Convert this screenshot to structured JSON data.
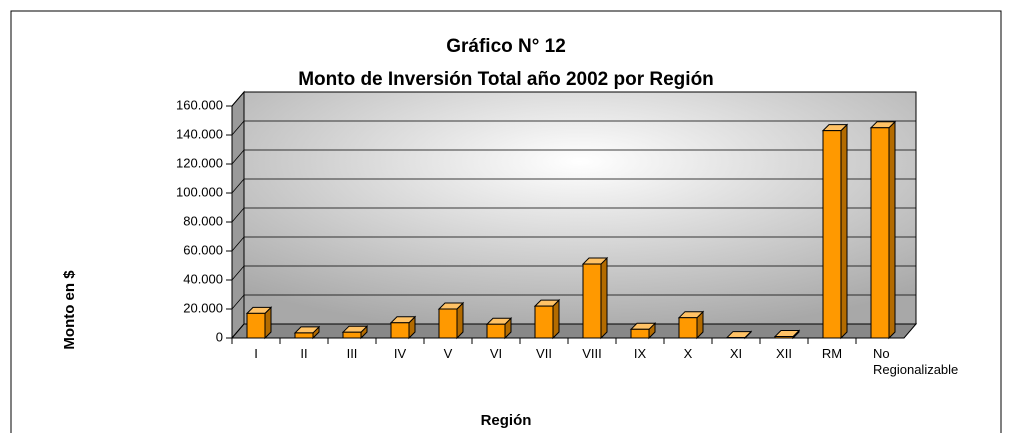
{
  "chart_data": {
    "type": "bar3d",
    "title": [
      "Gráfico N° 12",
      "Monto de Inversión Total año 2002 por Región"
    ],
    "y_label": "Monto en $",
    "x_label": "Región",
    "categories": [
      "I",
      "II",
      "III",
      "IV",
      "V",
      "VI",
      "VII",
      "VIII",
      "IX",
      "X",
      "XI",
      "XII",
      "RM",
      "No Regionalizable"
    ],
    "values": [
      17000,
      3500,
      4000,
      10500,
      20000,
      9500,
      22000,
      51000,
      6000,
      14000,
      300,
      1000,
      143000,
      145000
    ],
    "color": "#ff9900",
    "ylim": [
      0,
      160000
    ],
    "yticks": [
      0,
      {
        "value": 20000,
        "label": "20.000"
      },
      {
        "value": 40000,
        "label": "40.000"
      },
      {
        "value": 60000,
        "label": "60.000"
      },
      {
        "value": 80000,
        "label": "80.000"
      },
      {
        "value": 100000,
        "label": "100.000"
      },
      {
        "value": 120000,
        "label": "120.000"
      },
      {
        "value": 140000,
        "label": "140.000"
      },
      {
        "value": 160000,
        "label": "160.000"
      }
    ],
    "grid": true
  }
}
